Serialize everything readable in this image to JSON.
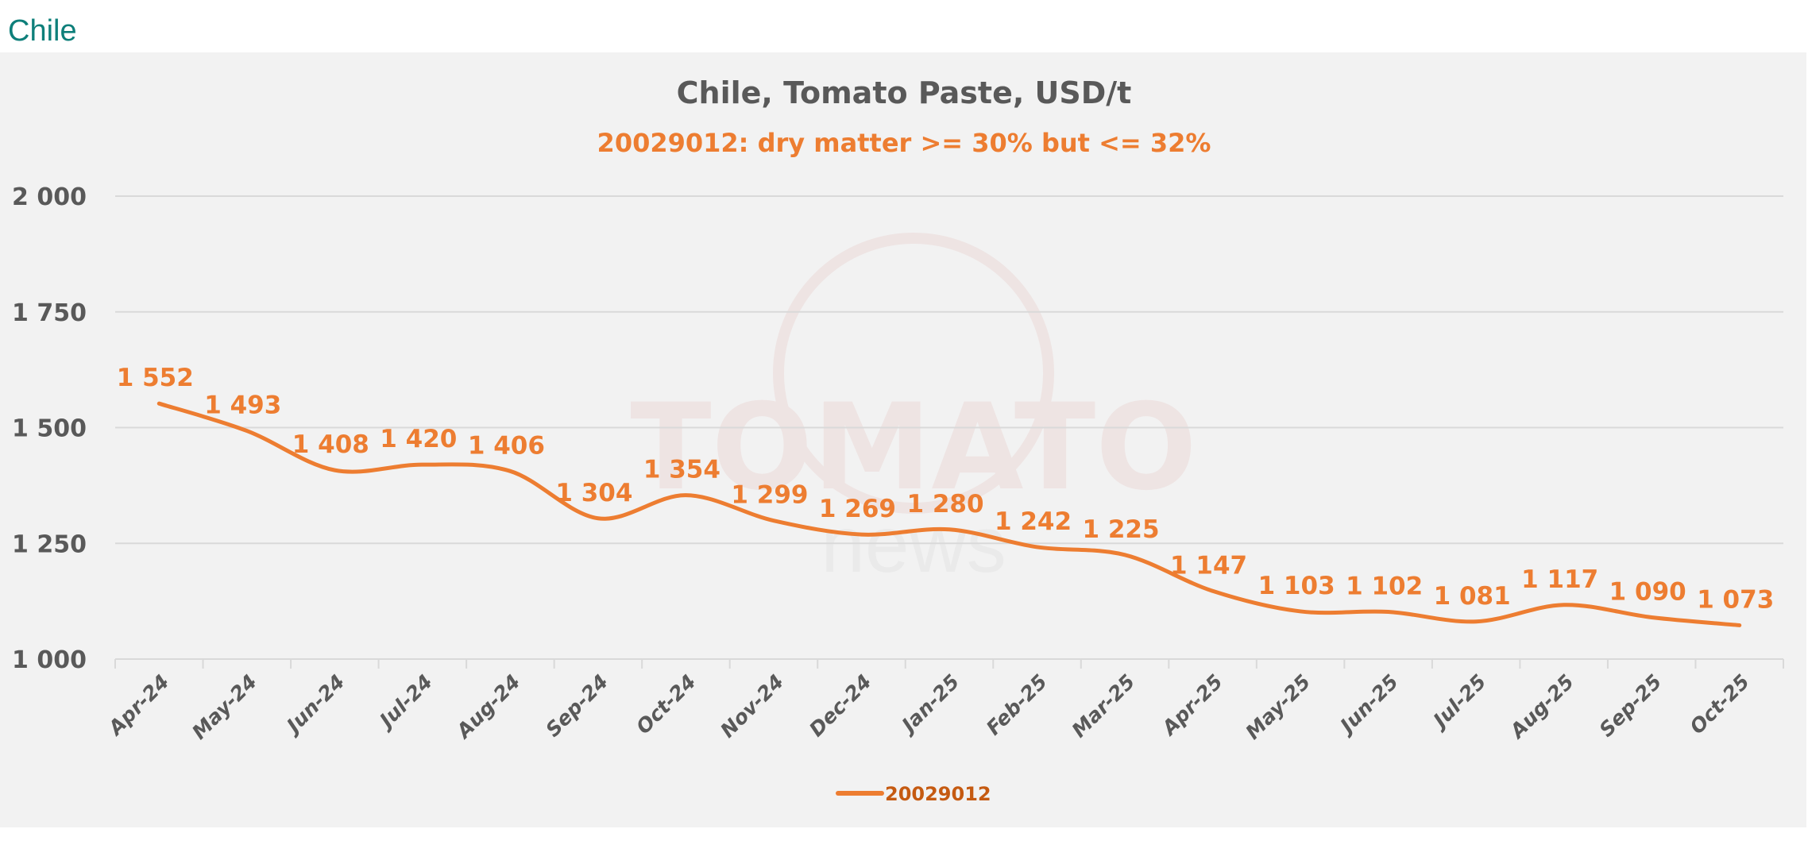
{
  "page_heading": "Chile",
  "chart_data": {
    "type": "line",
    "title": "Chile, Tomato Paste, USD/t",
    "subtitle": "20029012: dry matter >= 30% but <= 32%",
    "categories": [
      "Apr-24",
      "May-24",
      "Jun-24",
      "Jul-24",
      "Aug-24",
      "Sep-24",
      "Oct-24",
      "Nov-24",
      "Dec-24",
      "Jan-25",
      "Feb-25",
      "Mar-25",
      "Apr-25",
      "May-25",
      "Jun-25",
      "Jul-25",
      "Aug-25",
      "Sep-25",
      "Oct-25"
    ],
    "series": [
      {
        "name": "20029012",
        "values": [
          1552,
          1493,
          1408,
          1420,
          1406,
          1304,
          1354,
          1299,
          1269,
          1280,
          1242,
          1225,
          1147,
          1103,
          1102,
          1081,
          1117,
          1090,
          1073
        ],
        "labels": [
          "1 552",
          "1 493",
          "1 408",
          "1 420",
          "1 406",
          "1 304",
          "1 354",
          "1 299",
          "1 269",
          "1 280",
          "1 242",
          "1 225",
          "1 147",
          "1 103",
          "1 102",
          "1 081",
          "1 117",
          "1 090",
          "1 073"
        ]
      }
    ],
    "yticks": [
      1000,
      1250,
      1500,
      1750,
      2000
    ],
    "ytick_labels": [
      "1 000",
      "1 250",
      "1 500",
      "1 750",
      "2 000"
    ],
    "ylim": [
      1000,
      2000
    ],
    "xlabel": "",
    "ylabel": "",
    "grid": true,
    "legend": "bottom-center",
    "colors": {
      "line": "#ed7d31",
      "legend_text": "#c55a11",
      "axis_text": "#595959",
      "title": "#595959"
    }
  },
  "watermark": "TOMATO news"
}
